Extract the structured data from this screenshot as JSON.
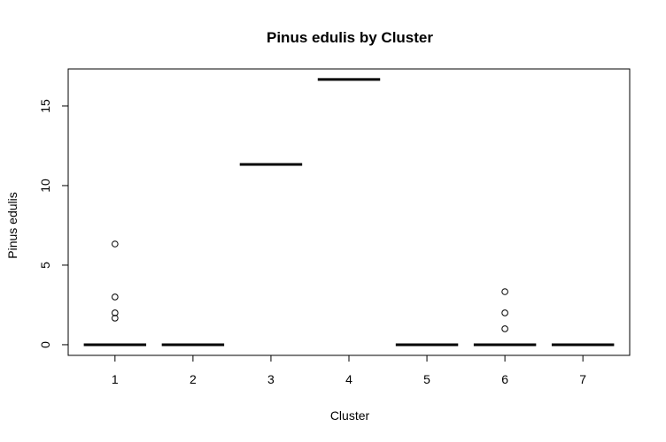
{
  "chart_data": {
    "type": "boxplot",
    "title": "Pinus edulis  by Cluster",
    "xlabel": "Cluster",
    "ylabel": "Pinus edulis",
    "categories": [
      "1",
      "2",
      "3",
      "4",
      "5",
      "6",
      "7"
    ],
    "yticks": [
      0,
      5,
      10,
      15
    ],
    "ylim": [
      -0.67,
      17.33
    ],
    "grid": false,
    "boxes": [
      {
        "cluster": "1",
        "min": 0,
        "q1": 0,
        "median": 0,
        "q3": 0,
        "max": 0,
        "outliers": [
          6.33,
          3.0,
          2.0,
          1.67
        ]
      },
      {
        "cluster": "2",
        "min": 0,
        "q1": 0,
        "median": 0,
        "q3": 0,
        "max": 0,
        "outliers": []
      },
      {
        "cluster": "3",
        "min": 11.33,
        "q1": 11.33,
        "median": 11.33,
        "q3": 11.33,
        "max": 11.33,
        "outliers": []
      },
      {
        "cluster": "4",
        "min": 16.67,
        "q1": 16.67,
        "median": 16.67,
        "q3": 16.67,
        "max": 16.67,
        "outliers": []
      },
      {
        "cluster": "5",
        "min": 0,
        "q1": 0,
        "median": 0,
        "q3": 0,
        "max": 0,
        "outliers": []
      },
      {
        "cluster": "6",
        "min": 0,
        "q1": 0,
        "median": 0,
        "q3": 0,
        "max": 0,
        "outliers": [
          3.33,
          2.0,
          1.0
        ]
      },
      {
        "cluster": "7",
        "min": 0,
        "q1": 0,
        "median": 0,
        "q3": 0,
        "max": 0,
        "outliers": []
      }
    ]
  }
}
